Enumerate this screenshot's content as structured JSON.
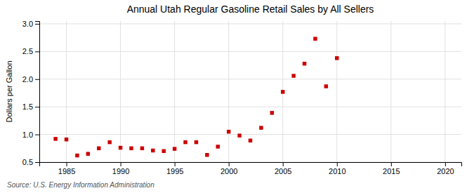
{
  "chart_data": {
    "type": "scatter",
    "title": "Annual Utah Regular Gasoline Retail Sales by All Sellers",
    "ylabel": "Dollars per Gallon",
    "annotations": [
      "Source: U.S. Energy Information Administration"
    ],
    "x": [
      1984,
      1985,
      1986,
      1987,
      1988,
      1989,
      1990,
      1991,
      1992,
      1993,
      1994,
      1995,
      1996,
      1997,
      1998,
      1999,
      2000,
      2001,
      2002,
      2003,
      2004,
      2005,
      2006,
      2007,
      2008,
      2009,
      2010
    ],
    "values": [
      0.92,
      0.91,
      0.62,
      0.65,
      0.75,
      0.86,
      0.76,
      0.75,
      0.75,
      0.71,
      0.7,
      0.74,
      0.86,
      0.86,
      0.63,
      0.78,
      1.05,
      0.98,
      0.89,
      1.12,
      1.39,
      1.77,
      2.06,
      2.28,
      2.73,
      1.87,
      2.38
    ],
    "color": "#cc0000",
    "marker": "square",
    "xlim": [
      1982.5,
      2021.5
    ],
    "ylim": [
      0.5,
      3.05
    ],
    "xticks": [
      1985,
      1990,
      1995,
      2000,
      2005,
      2010,
      2015,
      2020
    ],
    "yticks": [
      0.5,
      {
        "value": 1.0,
        "label": "1.0"
      },
      1.5,
      {
        "value": 2.0,
        "label": "2.0"
      },
      2.5,
      {
        "value": 3.0,
        "label": "3.0"
      }
    ],
    "grid": true
  }
}
